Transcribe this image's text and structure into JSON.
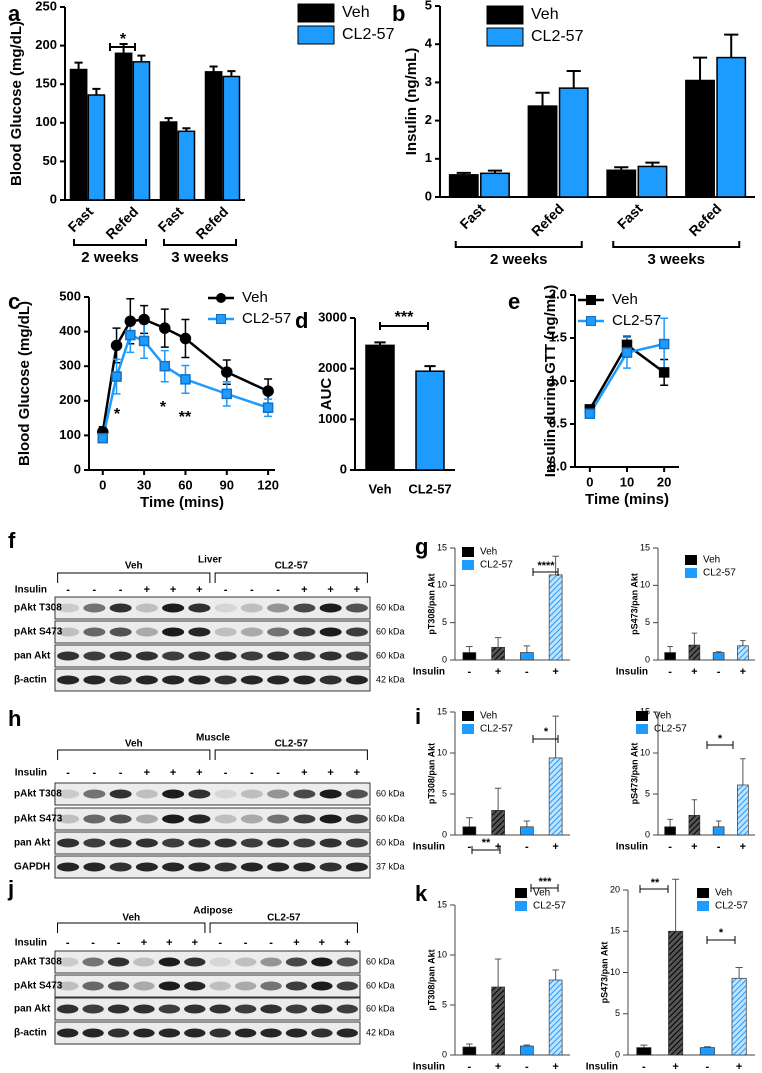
{
  "chart_data": [
    {
      "panel": "a",
      "type": "bar",
      "ylabel": "Blood Glucose (mg/dL)",
      "categories": [
        "Fast",
        "Refed",
        "Fast",
        "Refed"
      ],
      "groups": [
        "2 weeks",
        "3 weeks"
      ],
      "series": [
        {
          "name": "Veh",
          "color": "#000000",
          "values": [
            169,
            190,
            101,
            166
          ],
          "errors": [
            9,
            12,
            5,
            7
          ]
        },
        {
          "name": "CL2-57",
          "color": "#1e9bff",
          "values": [
            136,
            179,
            89,
            160
          ],
          "errors": [
            8,
            8,
            4,
            7
          ]
        }
      ],
      "ylim": [
        0,
        250
      ],
      "yticks": [
        0,
        50,
        100,
        150,
        200,
        250
      ],
      "annotations": [
        "*"
      ]
    },
    {
      "panel": "b",
      "type": "bar",
      "ylabel": "Insulin (ng/mL)",
      "categories": [
        "Fast",
        "Refed",
        "Fast",
        "Refed"
      ],
      "groups": [
        "2 weeks",
        "3 weeks"
      ],
      "series": [
        {
          "name": "Veh",
          "color": "#000000",
          "values": [
            0.58,
            2.38,
            0.7,
            3.05
          ],
          "errors": [
            0.05,
            0.35,
            0.08,
            0.6
          ]
        },
        {
          "name": "CL2-57",
          "color": "#1e9bff",
          "values": [
            0.62,
            2.85,
            0.8,
            3.65
          ],
          "errors": [
            0.07,
            0.45,
            0.1,
            0.6
          ]
        }
      ],
      "ylim": [
        0,
        5
      ],
      "yticks": [
        0,
        1,
        2,
        3,
        4,
        5
      ]
    },
    {
      "panel": "c",
      "type": "line",
      "xlabel": "Time (mins)",
      "ylabel": "Blood Glucose (mg/dL)",
      "x": [
        0,
        10,
        20,
        30,
        45,
        60,
        90,
        120
      ],
      "series": [
        {
          "name": "Veh",
          "color": "#000000",
          "marker": "circle",
          "values": [
            110,
            360,
            430,
            435,
            410,
            380,
            283,
            228
          ],
          "errors": [
            15,
            50,
            65,
            40,
            55,
            55,
            35,
            35
          ]
        },
        {
          "name": "CL2-57",
          "color": "#1e9bff",
          "marker": "square",
          "values": [
            92,
            270,
            390,
            373,
            300,
            262,
            220,
            180
          ],
          "errors": [
            10,
            50,
            50,
            50,
            45,
            40,
            35,
            25
          ]
        }
      ],
      "xlim": [
        -10,
        125
      ],
      "xticks": [
        0,
        30,
        60,
        90,
        120
      ],
      "ylim": [
        0,
        500
      ],
      "yticks": [
        0,
        100,
        200,
        300,
        400,
        500
      ],
      "annotations": [
        "*",
        "*",
        "**"
      ]
    },
    {
      "panel": "d",
      "type": "bar",
      "ylabel": "AUC",
      "categories": [
        "Veh",
        "CL2-57"
      ],
      "values": [
        2460,
        1950
      ],
      "errors": [
        60,
        100
      ],
      "colors": [
        "#000000",
        "#1e9bff"
      ],
      "ylim": [
        0,
        3000
      ],
      "yticks": [
        0,
        1000,
        2000,
        3000
      ],
      "annotations": [
        "***"
      ]
    },
    {
      "panel": "e",
      "type": "line",
      "xlabel": "Time (mins)",
      "ylabel": "Insulin during GTT (ng/mL)",
      "x": [
        0,
        10,
        20
      ],
      "series": [
        {
          "name": "Veh",
          "color": "#000000",
          "marker": "square",
          "values": [
            0.67,
            1.42,
            1.1
          ],
          "errors": [
            0.03,
            0.1,
            0.15
          ]
        },
        {
          "name": "CL2-57",
          "color": "#1e9bff",
          "marker": "square",
          "values": [
            0.62,
            1.33,
            1.43
          ],
          "errors": [
            0.03,
            0.18,
            0.3
          ]
        }
      ],
      "xlim": [
        -4,
        24
      ],
      "xticks": [
        0,
        10,
        20
      ],
      "ylim": [
        0,
        2
      ],
      "yticks": [
        {
          "value": 0,
          "label": "0.0"
        },
        0.5,
        {
          "value": 1,
          "label": "1.0"
        },
        1.5,
        {
          "value": 2,
          "label": "2.0"
        }
      ]
    },
    {
      "panel": "g",
      "type": "bar",
      "ylabel": "pT308/pan Akt",
      "xlabel": "Insulin",
      "categories": [
        "-",
        "+",
        "-",
        "+"
      ],
      "hatch": [
        false,
        true,
        false,
        true
      ],
      "series": [
        {
          "name": "Veh",
          "color": "#000000",
          "values": [
            1.0,
            1.7,
            null,
            null
          ],
          "errors": [
            0.8,
            1.3,
            null,
            null
          ]
        },
        {
          "name": "CL2-57",
          "color": "#1e9bff",
          "values": [
            null,
            null,
            1.0,
            11.4
          ],
          "errors": [
            null,
            null,
            0.9,
            2.5
          ]
        }
      ],
      "ylim": [
        0,
        15
      ],
      "yticks": [
        0,
        5,
        10,
        15
      ],
      "annotations": [
        "****"
      ]
    },
    {
      "type": "bar",
      "ylabel": "pS473/pan Akt",
      "xlabel": "Insulin",
      "categories": [
        "-",
        "+",
        "-",
        "+"
      ],
      "hatch": [
        false,
        true,
        false,
        true
      ],
      "series": [
        {
          "name": "Veh",
          "color": "#000000",
          "values": [
            1.0,
            2.0,
            null,
            null
          ],
          "errors": [
            0.8,
            1.6,
            null,
            null
          ]
        },
        {
          "name": "CL2-57",
          "color": "#1e9bff",
          "values": [
            null,
            null,
            1.0,
            1.9
          ],
          "errors": [
            null,
            null,
            0.1,
            0.7
          ]
        }
      ],
      "ylim": [
        0,
        15
      ],
      "yticks": [
        0,
        5,
        10,
        15
      ]
    },
    {
      "panel": "i",
      "type": "bar",
      "ylabel": "pT308/pan Akt",
      "xlabel": "Insulin",
      "categories": [
        "-",
        "+",
        "-",
        "+"
      ],
      "hatch": [
        false,
        true,
        false,
        true
      ],
      "series": [
        {
          "name": "Veh",
          "color": "#000000",
          "values": [
            1.0,
            3.0,
            null,
            null
          ],
          "errors": [
            1.1,
            2.7,
            null,
            null
          ]
        },
        {
          "name": "CL2-57",
          "color": "#1e9bff",
          "values": [
            null,
            null,
            1.0,
            9.4
          ],
          "errors": [
            null,
            null,
            0.7,
            5.1
          ]
        }
      ],
      "ylim": [
        0,
        15
      ],
      "yticks": [
        0,
        5,
        10,
        15
      ],
      "annotations": [
        "*"
      ]
    },
    {
      "type": "bar",
      "ylabel": "pS473/pan Akt",
      "xlabel": "Insulin",
      "categories": [
        "-",
        "+",
        "-",
        "+"
      ],
      "hatch": [
        false,
        true,
        false,
        true
      ],
      "series": [
        {
          "name": "Veh",
          "color": "#000000",
          "values": [
            1.0,
            2.4,
            null,
            null
          ],
          "errors": [
            0.9,
            1.9,
            null,
            null
          ]
        },
        {
          "name": "CL2-57",
          "color": "#1e9bff",
          "values": [
            null,
            null,
            1.0,
            6.1
          ],
          "errors": [
            null,
            null,
            0.7,
            3.2
          ]
        }
      ],
      "ylim": [
        0,
        15
      ],
      "yticks": [
        0,
        5,
        10,
        15
      ],
      "annotations": [
        "*"
      ]
    },
    {
      "panel": "k",
      "type": "bar",
      "ylabel": "pT308/pan Akt",
      "xlabel": "Insulin",
      "categories": [
        "-",
        "+",
        "-",
        "+"
      ],
      "hatch": [
        false,
        true,
        false,
        true
      ],
      "series": [
        {
          "name": "Veh",
          "color": "#000000",
          "values": [
            0.8,
            6.8,
            null,
            null
          ],
          "errors": [
            0.3,
            2.8,
            null,
            null
          ]
        },
        {
          "name": "CL2-57",
          "color": "#1e9bff",
          "values": [
            null,
            null,
            0.9,
            7.5
          ],
          "errors": [
            null,
            null,
            0.1,
            1.0
          ]
        }
      ],
      "ylim": [
        0,
        15
      ],
      "yticks": [
        0,
        5,
        10,
        15
      ],
      "annotations": [
        "**",
        "***"
      ]
    },
    {
      "type": "bar",
      "ylabel": "pS473/pan Akt",
      "xlabel": "Insulin",
      "categories": [
        "-",
        "+",
        "-",
        "+"
      ],
      "hatch": [
        false,
        true,
        false,
        true
      ],
      "series": [
        {
          "name": "Veh",
          "color": "#000000",
          "values": [
            0.9,
            15.0,
            null,
            null
          ],
          "errors": [
            0.3,
            6.3,
            null,
            null
          ]
        },
        {
          "name": "CL2-57",
          "color": "#1e9bff",
          "values": [
            null,
            null,
            0.9,
            9.3
          ],
          "errors": [
            null,
            null,
            0.1,
            1.3
          ]
        }
      ],
      "ylim": [
        0,
        20
      ],
      "yticks": [
        0,
        5,
        10,
        15,
        20
      ],
      "annotations": [
        "**",
        "*"
      ]
    }
  ],
  "blots": [
    {
      "panel": "f",
      "tissue": "Liver",
      "groups": [
        "Veh",
        "CL2-57"
      ],
      "treatment": "Insulin",
      "signs": [
        "-",
        "-",
        "-",
        "+",
        "+",
        "+",
        "-",
        "-",
        "-",
        "+",
        "+",
        "+"
      ],
      "rows": [
        "pAkt T308",
        "pAkt S473",
        "pan Akt",
        "β-actin"
      ],
      "sizes": [
        "60 kDa",
        "60 kDa",
        "60 kDa",
        "42 kDa"
      ]
    },
    {
      "panel": "h",
      "tissue": "Muscle",
      "groups": [
        "Veh",
        "CL2-57"
      ],
      "treatment": "Insulin",
      "signs": [
        "-",
        "-",
        "-",
        "+",
        "+",
        "+",
        "-",
        "-",
        "-",
        "+",
        "+",
        "+"
      ],
      "rows": [
        "pAkt T308",
        "pAkt S473",
        "pan Akt",
        "GAPDH"
      ],
      "sizes": [
        "60 kDa",
        "60 kDa",
        "60 kDa",
        "37 kDa"
      ]
    },
    {
      "panel": "j",
      "tissue": "Adipose",
      "groups": [
        "Veh",
        "CL2-57"
      ],
      "treatment": "Insulin",
      "signs": [
        "-",
        "-",
        "-",
        "+",
        "+",
        "+",
        "-",
        "-",
        "-",
        "+",
        "+",
        "+"
      ],
      "rows": [
        "pAkt T308",
        "pAkt S473",
        "pan Akt",
        "β-actin"
      ],
      "sizes": [
        "60 kDa",
        "60 kDa",
        "60 kDa",
        "42 kDa"
      ]
    }
  ]
}
